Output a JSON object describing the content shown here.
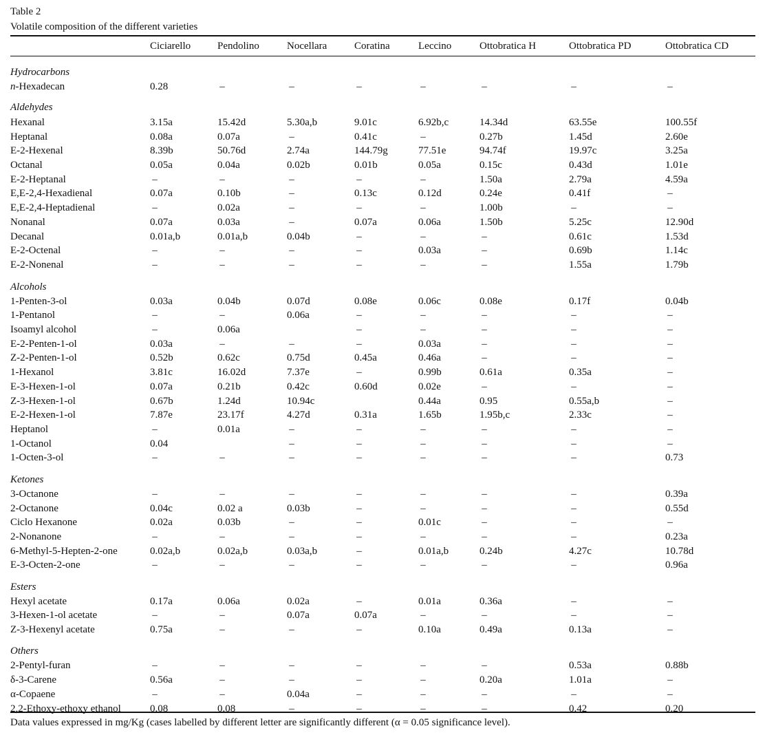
{
  "table_label": "Table 2",
  "table_title": "Volatile composition of the different varieties",
  "columns": [
    "Ciciarello",
    "Pendolino",
    "Nocellara",
    "Coratina",
    "Leccino",
    "Ottobratica H",
    "Ottobratica PD",
    "Ottobratica CD"
  ],
  "sections": [
    {
      "name": "Hydrocarbons",
      "rows": [
        {
          "compound": "n-Hexadecan",
          "values": [
            "0.28",
            "–",
            "–",
            "–",
            "–",
            "–",
            "–",
            "–"
          ]
        }
      ]
    },
    {
      "name": "Aldehydes",
      "rows": [
        {
          "compound": "Hexanal",
          "values": [
            "3.15a",
            "15.42d",
            "5.30a,b",
            "9.01c",
            "6.92b,c",
            "14.34d",
            "63.55e",
            "100.55f"
          ]
        },
        {
          "compound": "Heptanal",
          "values": [
            "0.08a",
            "0.07a",
            "–",
            "0.41c",
            "–",
            "0.27b",
            "1.45d",
            "2.60e"
          ]
        },
        {
          "compound": "E-2-Hexenal",
          "values": [
            "8.39b",
            "50.76d",
            "2.74a",
            "144.79g",
            "77.51e",
            "94.74f",
            "19.97c",
            "3.25a"
          ]
        },
        {
          "compound": "Octanal",
          "values": [
            "0.05a",
            "0.04a",
            "0.02b",
            "0.01b",
            "0.05a",
            "0.15c",
            "0.43d",
            "1.01e"
          ]
        },
        {
          "compound": "E-2-Heptanal",
          "values": [
            "–",
            "–",
            "–",
            "–",
            "–",
            "1.50a",
            "2.79a",
            "4.59a"
          ]
        },
        {
          "compound": "E,E-2,4-Hexadienal",
          "values": [
            "0.07a",
            "0.10b",
            "–",
            "0.13c",
            "0.12d",
            "0.24e",
            "0.41f",
            "–"
          ]
        },
        {
          "compound": "E,E-2,4-Heptadienal",
          "values": [
            "–",
            "0.02a",
            "–",
            "–",
            "–",
            "1.00b",
            "–",
            "–"
          ]
        },
        {
          "compound": "Nonanal",
          "values": [
            "0.07a",
            "0.03a",
            "–",
            "0.07a",
            "0.06a",
            "1.50b",
            "5.25c",
            "12.90d"
          ]
        },
        {
          "compound": "Decanal",
          "values": [
            "0.01a,b",
            "0.01a,b",
            "0.04b",
            "–",
            "–",
            "–",
            "0.61c",
            "1.53d"
          ]
        },
        {
          "compound": "E-2-Octenal",
          "values": [
            "–",
            "–",
            "–",
            "–",
            "0.03a",
            "–",
            "0.69b",
            "1.14c"
          ]
        },
        {
          "compound": "E-2-Nonenal",
          "values": [
            "–",
            "–",
            "–",
            "–",
            "–",
            "–",
            "1.55a",
            "1.79b"
          ]
        }
      ]
    },
    {
      "name": "Alcohols",
      "rows": [
        {
          "compound": "1-Penten-3-ol",
          "values": [
            "0.03a",
            "0.04b",
            "0.07d",
            "0.08e",
            "0.06c",
            "0.08e",
            "0.17f",
            "0.04b"
          ]
        },
        {
          "compound": "1-Pentanol",
          "values": [
            "–",
            "–",
            "0.06a",
            "–",
            "–",
            "–",
            "–",
            "–"
          ]
        },
        {
          "compound": "Isoamyl alcohol",
          "values": [
            "–",
            "0.06a",
            "",
            "–",
            "–",
            "–",
            "–",
            "–"
          ]
        },
        {
          "compound": "E-2-Penten-1-ol",
          "values": [
            "0.03a",
            "–",
            "–",
            "–",
            "0.03a",
            "–",
            "–",
            "–"
          ]
        },
        {
          "compound": "Z-2-Penten-1-ol",
          "values": [
            "0.52b",
            "0.62c",
            "0.75d",
            "0.45a",
            "0.46a",
            "–",
            "–",
            "–"
          ]
        },
        {
          "compound": "1-Hexanol",
          "values": [
            "3.81c",
            "16.02d",
            "7.37e",
            "–",
            "0.99b",
            "0.61a",
            "0.35a",
            "–"
          ]
        },
        {
          "compound": "E-3-Hexen-1-ol",
          "values": [
            "0.07a",
            "0.21b",
            "0.42c",
            "0.60d",
            "0.02e",
            "–",
            "–",
            "–"
          ]
        },
        {
          "compound": "Z-3-Hexen-1-ol",
          "values": [
            "0.67b",
            "1.24d",
            "10.94c",
            "",
            "0.44a",
            "0.95",
            "0.55a,b",
            "–"
          ]
        },
        {
          "compound": "E-2-Hexen-1-ol",
          "values": [
            "7.87e",
            "23.17f",
            "4.27d",
            "0.31a",
            "1.65b",
            "1.95b,c",
            "2.33c",
            "–"
          ]
        },
        {
          "compound": "Heptanol",
          "values": [
            "–",
            "0.01a",
            "–",
            "–",
            "–",
            "–",
            "–",
            "–"
          ]
        },
        {
          "compound": "1-Octanol",
          "values": [
            "0.04",
            "",
            "–",
            "–",
            "–",
            "–",
            "–",
            "–"
          ]
        },
        {
          "compound": "1-Octen-3-ol",
          "values": [
            "–",
            "–",
            "–",
            "–",
            "–",
            "–",
            "–",
            "0.73"
          ]
        }
      ]
    },
    {
      "name": "Ketones",
      "rows": [
        {
          "compound": "3-Octanone",
          "values": [
            "–",
            "–",
            "–",
            "–",
            "–",
            "–",
            "–",
            "0.39a"
          ]
        },
        {
          "compound": "2-Octanone",
          "values": [
            "0.04c",
            "0.02 a",
            "0.03b",
            "–",
            "–",
            "–",
            "–",
            "0.55d"
          ]
        },
        {
          "compound": "Ciclo Hexanone",
          "values": [
            "0.02a",
            "0.03b",
            "–",
            "–",
            "0.01c",
            "–",
            "–",
            "–"
          ]
        },
        {
          "compound": "2-Nonanone",
          "values": [
            "–",
            "–",
            "–",
            "–",
            "–",
            "–",
            "–",
            "0.23a"
          ]
        },
        {
          "compound": "6-Methyl-5-Hepten-2-one",
          "values": [
            "0.02a,b",
            "0.02a,b",
            "0.03a,b",
            "–",
            "0.01a,b",
            "0.24b",
            "4.27c",
            "10.78d"
          ]
        },
        {
          "compound": "E-3-Octen-2-one",
          "values": [
            "–",
            "–",
            "–",
            "–",
            "–",
            "–",
            "–",
            "0.96a"
          ]
        }
      ]
    },
    {
      "name": "Esters",
      "rows": [
        {
          "compound": "Hexyl acetate",
          "values": [
            "0.17a",
            "0.06a",
            "0.02a",
            "–",
            "0.01a",
            "0.36a",
            "–",
            "–"
          ]
        },
        {
          "compound": "3-Hexen-1-ol acetate",
          "values": [
            "–",
            "–",
            "0.07a",
            "0.07a",
            "–",
            "–",
            "–",
            "–"
          ]
        },
        {
          "compound": "Z-3-Hexenyl acetate",
          "values": [
            "0.75a",
            "–",
            "–",
            "–",
            "0.10a",
            "0.49a",
            "0.13a",
            "–"
          ]
        }
      ]
    },
    {
      "name": "Others",
      "rows": [
        {
          "compound": "2-Pentyl-furan",
          "values": [
            "–",
            "–",
            "–",
            "–",
            "–",
            "–",
            "0.53a",
            "0.88b"
          ]
        },
        {
          "compound": "δ-3-Carene",
          "values": [
            "0.56a",
            "–",
            "–",
            "–",
            "–",
            "0.20a",
            "1.01a",
            "–"
          ]
        },
        {
          "compound": "α-Copaene",
          "values": [
            "–",
            "–",
            "0.04a",
            "–",
            "–",
            "–",
            "–",
            "–"
          ]
        },
        {
          "compound": "2,2-Ethoxy-ethoxy ethanol",
          "values": [
            "0.08",
            "0.08",
            "–",
            "–",
            "–",
            "–",
            "0.42",
            "0.20"
          ]
        }
      ]
    }
  ],
  "footnote": "Data values expressed in mg/Kg (cases labelled by different letter are significantly different (α = 0.05 significance level)."
}
